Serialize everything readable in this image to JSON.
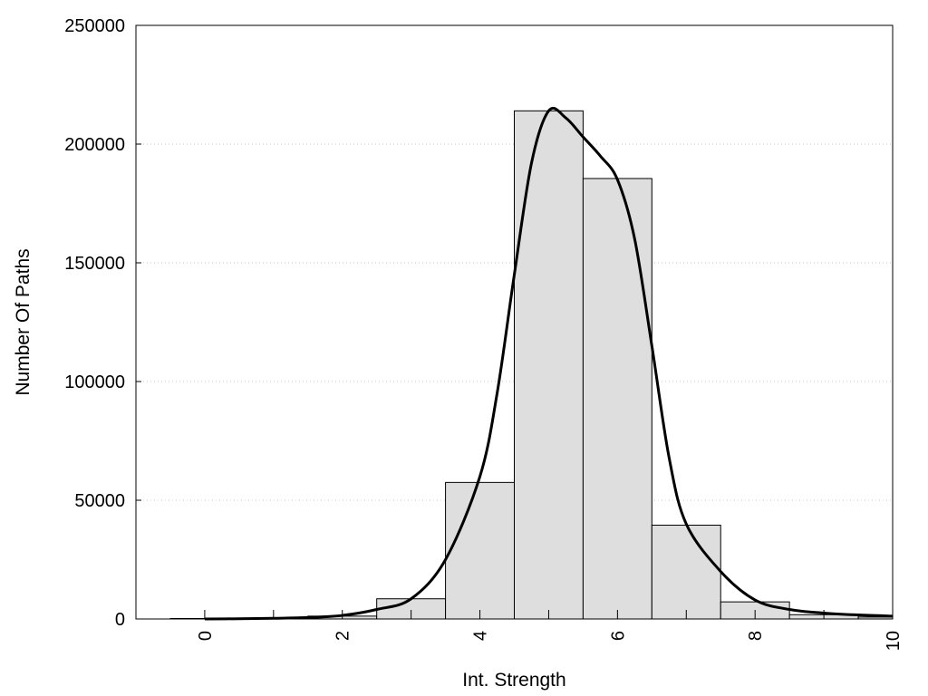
{
  "chart_data": {
    "type": "bar",
    "title": "",
    "xlabel": "Int. Strength",
    "ylabel": "Number Of Paths",
    "xlim": [
      -1,
      10
    ],
    "ylim": [
      0,
      250000
    ],
    "x_ticks": [
      0,
      2,
      4,
      6,
      8,
      10
    ],
    "y_ticks": [
      0,
      50000,
      100000,
      150000,
      200000,
      250000
    ],
    "grid": "horizontal dotted",
    "bar_fill": "#dedede",
    "bar_stroke": "#000000",
    "categories": [
      0,
      1,
      2,
      3,
      4,
      5,
      6,
      7,
      8,
      9,
      10
    ],
    "values": [
      200,
      300,
      1200,
      8500,
      57500,
      214000,
      185500,
      39500,
      7200,
      1800,
      800
    ],
    "fit_curve": {
      "x": [
        0,
        0.5,
        1,
        1.5,
        2,
        2.5,
        3,
        3.5,
        4,
        4.25,
        4.5,
        4.75,
        5,
        5.25,
        5.5,
        5.75,
        6,
        6.25,
        6.5,
        6.75,
        7,
        7.5,
        8,
        8.5,
        9,
        9.5,
        10
      ],
      "y": [
        0,
        100,
        300,
        600,
        1500,
        4000,
        8500,
        25000,
        60000,
        95000,
        145000,
        192000,
        214000,
        211000,
        203000,
        195000,
        185000,
        160000,
        115000,
        68000,
        40000,
        20000,
        8000,
        4000,
        2500,
        1700,
        1200
      ]
    }
  }
}
